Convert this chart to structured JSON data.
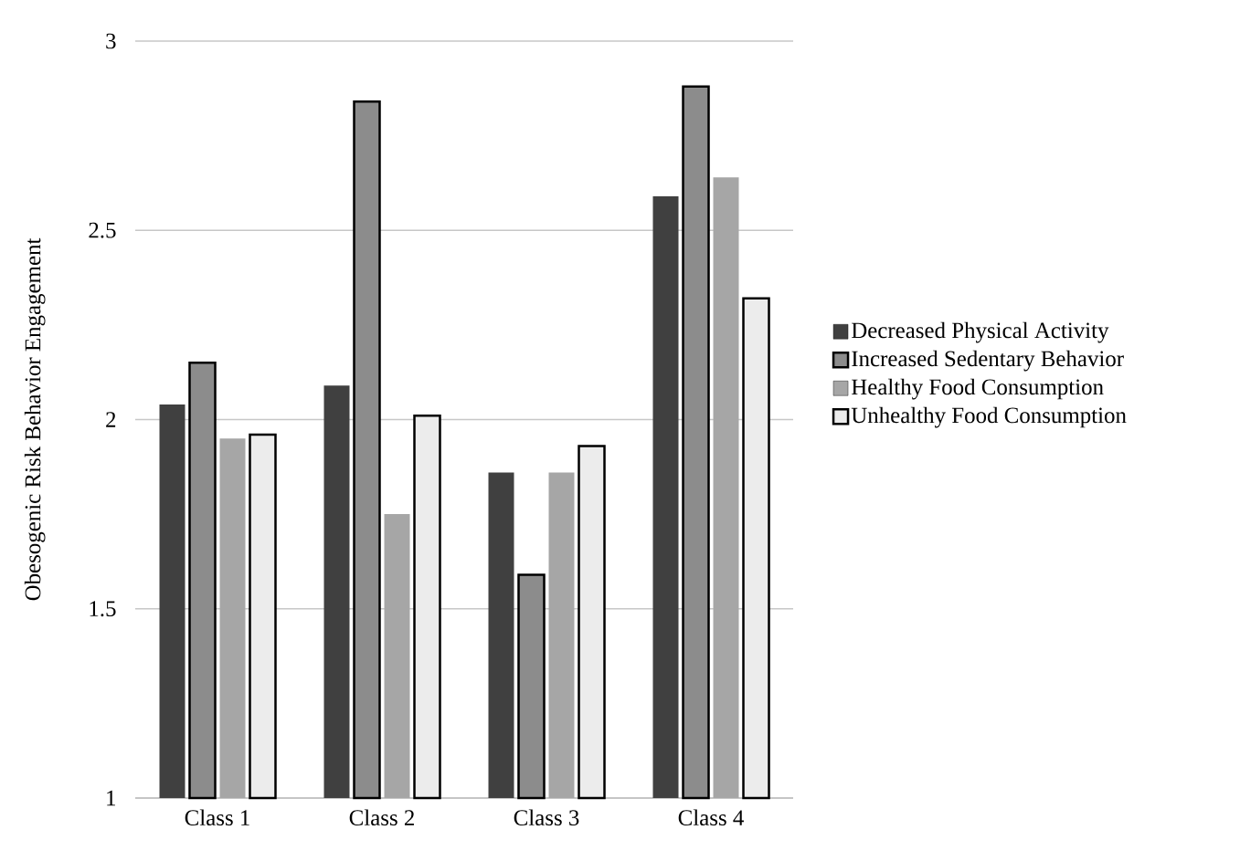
{
  "chart_data": {
    "type": "bar",
    "ylabel": "Obesogenic Risk Behavior Engagement",
    "categories": [
      "Class 1",
      "Class 2",
      "Class 3",
      "Class 4"
    ],
    "series": [
      {
        "name": "Decreased Physical Activity",
        "color": "#404040",
        "values": [
          2.04,
          2.09,
          1.86,
          2.59
        ]
      },
      {
        "name": "Increased Sedentary Behavior",
        "color": "#8c8c8c",
        "values": [
          2.15,
          2.84,
          1.59,
          2.88
        ]
      },
      {
        "name": "Healthy Food Consumption",
        "color": "#a6a6a6",
        "values": [
          1.95,
          1.75,
          1.86,
          2.64
        ]
      },
      {
        "name": "Unhealthy Food Consumption",
        "color": "#ececec",
        "values": [
          1.96,
          2.01,
          1.93,
          2.32
        ]
      }
    ],
    "ylim": [
      1,
      3
    ],
    "yticks": [
      1,
      1.5,
      2,
      2.5,
      3
    ],
    "grid": "y",
    "legend": "right"
  }
}
